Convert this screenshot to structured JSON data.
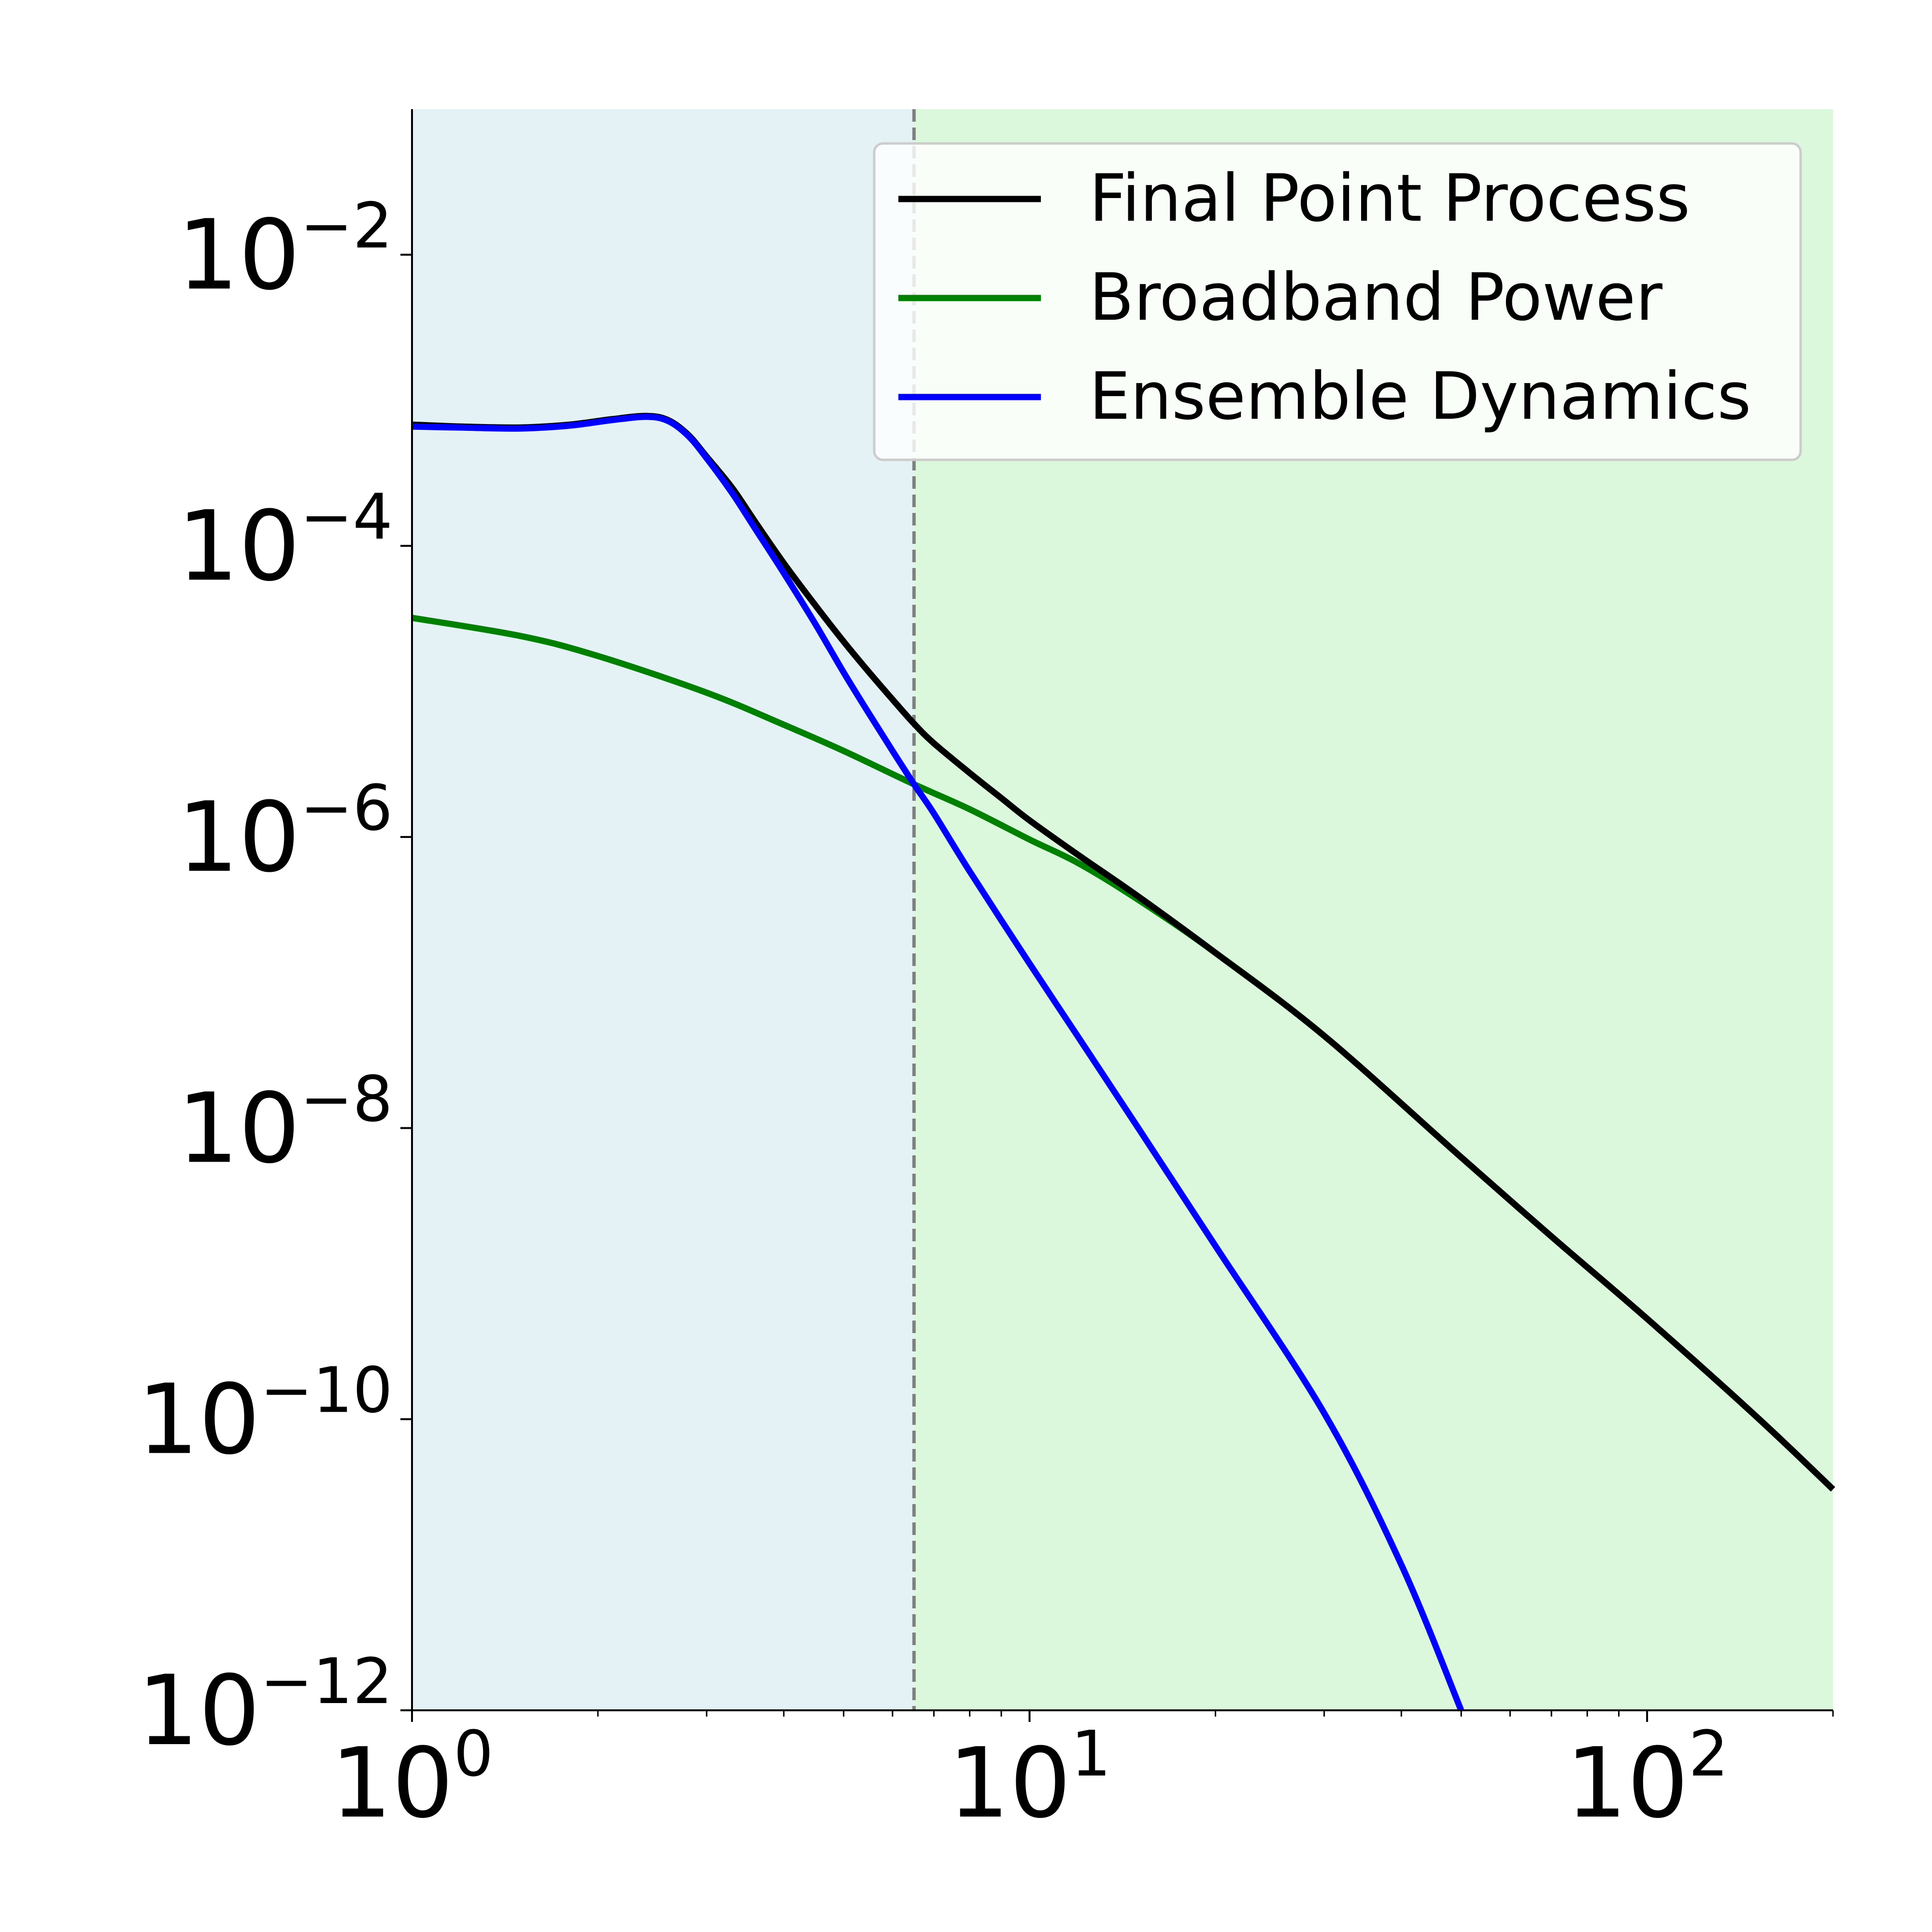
{
  "chart_data": {
    "type": "line",
    "xscale": "log",
    "yscale": "log",
    "xlim": [
      1,
      200
    ],
    "ylim": [
      1e-12,
      0.1
    ],
    "grid": false,
    "legend_position": "top-right",
    "x_ticks": [
      {
        "value": 1,
        "base": "10",
        "exp": "0"
      },
      {
        "value": 10,
        "base": "10",
        "exp": "1"
      },
      {
        "value": 100,
        "base": "10",
        "exp": "2"
      }
    ],
    "y_ticks": [
      {
        "value": 0.01,
        "base": "10",
        "exp": "−2"
      },
      {
        "value": 0.0001,
        "base": "10",
        "exp": "−4"
      },
      {
        "value": 1e-06,
        "base": "10",
        "exp": "−6"
      },
      {
        "value": 1e-08,
        "base": "10",
        "exp": "−8"
      },
      {
        "value": 1e-10,
        "base": "10",
        "exp": "−10"
      },
      {
        "value": 1e-12,
        "base": "10",
        "exp": "−12"
      }
    ],
    "regions": [
      {
        "x_from": 1,
        "x_to": 6.5,
        "color": "#e4f2f6"
      },
      {
        "x_from": 6.5,
        "x_to": 200,
        "color": "#dcf8dc"
      }
    ],
    "vline": {
      "x": 6.5,
      "color": "#808080",
      "style": "dashed"
    },
    "series": [
      {
        "name": "Final Point Process",
        "color": "#000000",
        "points": [
          [
            1,
            0.00068
          ],
          [
            1.2,
            0.00066
          ],
          [
            1.5,
            0.00065
          ],
          [
            1.8,
            0.00068
          ],
          [
            2.1,
            0.00074
          ],
          [
            2.4,
            0.00078
          ],
          [
            2.6,
            0.00073
          ],
          [
            2.8,
            0.00058
          ],
          [
            3.0,
            0.00041
          ],
          [
            3.3,
            0.00025
          ],
          [
            3.6,
            0.000145
          ],
          [
            4.0,
            7.6e-05
          ],
          [
            4.5,
            3.9e-05
          ],
          [
            5.0,
            2.2e-05
          ],
          [
            5.5,
            1.35e-05
          ],
          [
            6.0,
            8.8e-06
          ],
          [
            6.5,
            6e-06
          ],
          [
            7.0,
            4.4e-06
          ],
          [
            8.0,
            2.75e-06
          ],
          [
            9.0,
            1.85e-06
          ],
          [
            10,
            1.3e-06
          ],
          [
            12,
            7.5e-07
          ],
          [
            15,
            3.9e-07
          ],
          [
            20,
            1.6e-07
          ],
          [
            30,
            4.3e-08
          ],
          [
            50,
            6.3e-09
          ],
          [
            70,
            1.8e-09
          ],
          [
            100,
            4.9e-10
          ],
          [
            150,
            1.05e-10
          ],
          [
            200,
            3.3e-11
          ]
        ]
      },
      {
        "name": "Broadband Power",
        "color": "#008000",
        "points": [
          [
            1,
            3.2e-05
          ],
          [
            1.5,
            2.4e-05
          ],
          [
            2,
            1.75e-05
          ],
          [
            3,
            9.8e-06
          ],
          [
            4,
            5.9e-06
          ],
          [
            5,
            3.9e-06
          ],
          [
            6.5,
            2.3e-06
          ],
          [
            8,
            1.55e-06
          ],
          [
            10,
            9.6e-07
          ],
          [
            12,
            6.6e-07
          ],
          [
            15,
            3.7e-07
          ],
          [
            20,
            1.6e-07
          ],
          [
            30,
            4.3e-08
          ],
          [
            50,
            6.3e-09
          ],
          [
            70,
            1.8e-09
          ],
          [
            100,
            4.9e-10
          ],
          [
            150,
            1.05e-10
          ],
          [
            200,
            3.3e-11
          ]
        ]
      },
      {
        "name": "Ensemble Dynamics",
        "color": "#0000ff",
        "points": [
          [
            1,
            0.00066
          ],
          [
            1.2,
            0.00065
          ],
          [
            1.5,
            0.00064
          ],
          [
            1.8,
            0.00067
          ],
          [
            2.1,
            0.00073
          ],
          [
            2.4,
            0.00077
          ],
          [
            2.6,
            0.00072
          ],
          [
            2.8,
            0.00057
          ],
          [
            3.0,
            0.0004
          ],
          [
            3.3,
            0.00023
          ],
          [
            3.6,
            0.00013
          ],
          [
            4.0,
            6.5e-05
          ],
          [
            4.5,
            2.9e-05
          ],
          [
            5.0,
            1.35e-05
          ],
          [
            5.5,
            7e-06
          ],
          [
            6.0,
            3.9e-06
          ],
          [
            6.5,
            2.3e-06
          ],
          [
            7.0,
            1.45e-06
          ],
          [
            8.0,
            5.8e-07
          ],
          [
            10,
            1.35e-07
          ],
          [
            12,
            4.2e-08
          ],
          [
            15,
            1e-08
          ],
          [
            20,
            1.55e-09
          ],
          [
            30,
            1.1e-10
          ],
          [
            40,
            1e-11
          ],
          [
            50,
            1e-12
          ]
        ]
      }
    ]
  }
}
